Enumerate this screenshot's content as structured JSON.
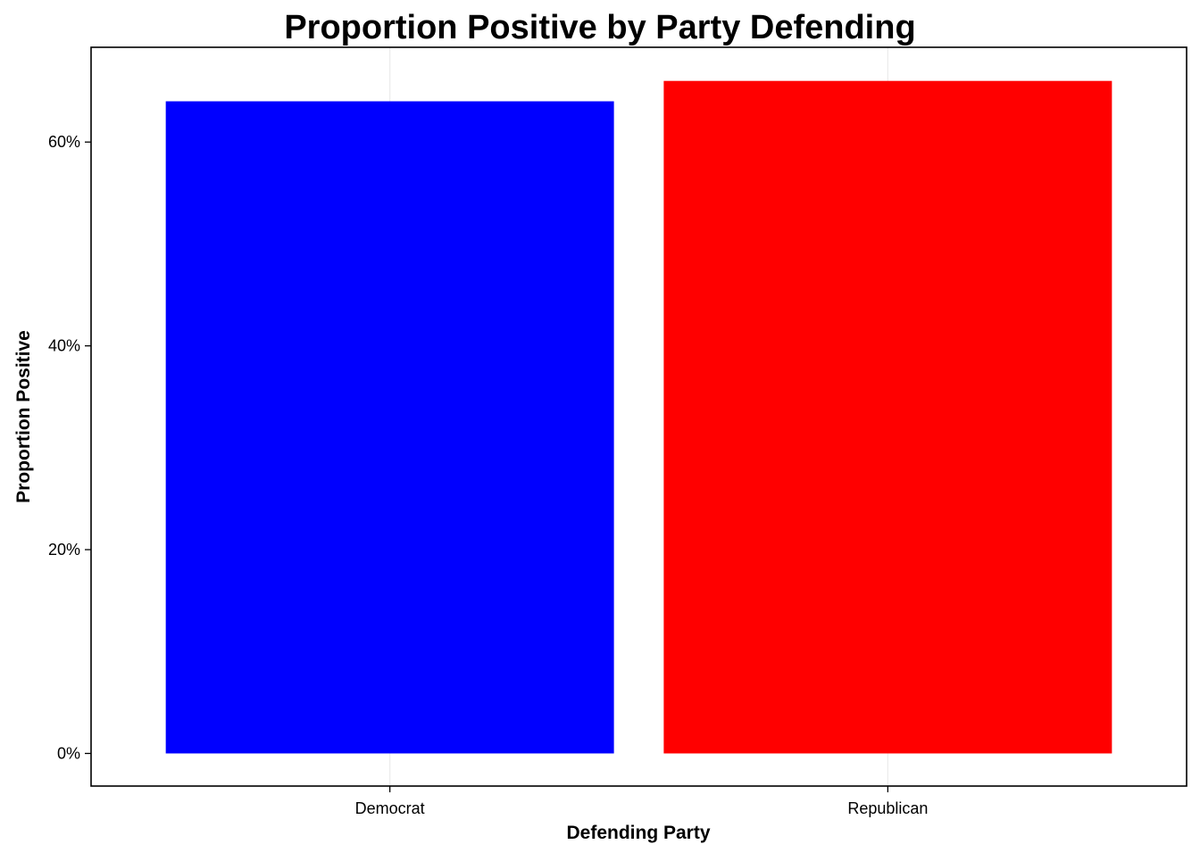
{
  "chart_data": {
    "type": "bar",
    "title": "Proportion Positive by Party Defending",
    "xlabel": "Defending Party",
    "ylabel": "Proportion Positive",
    "categories": [
      "Democrat",
      "Republican"
    ],
    "values": [
      0.64,
      0.66
    ],
    "colors": [
      "#0000ff",
      "#ff0000"
    ],
    "ylim": [
      -0.032,
      0.693
    ],
    "yticks": [
      0,
      0.2,
      0.4,
      0.6
    ],
    "ytick_labels": [
      "0%",
      "20%",
      "40%",
      "60%"
    ],
    "grid": true,
    "legend": "none"
  }
}
